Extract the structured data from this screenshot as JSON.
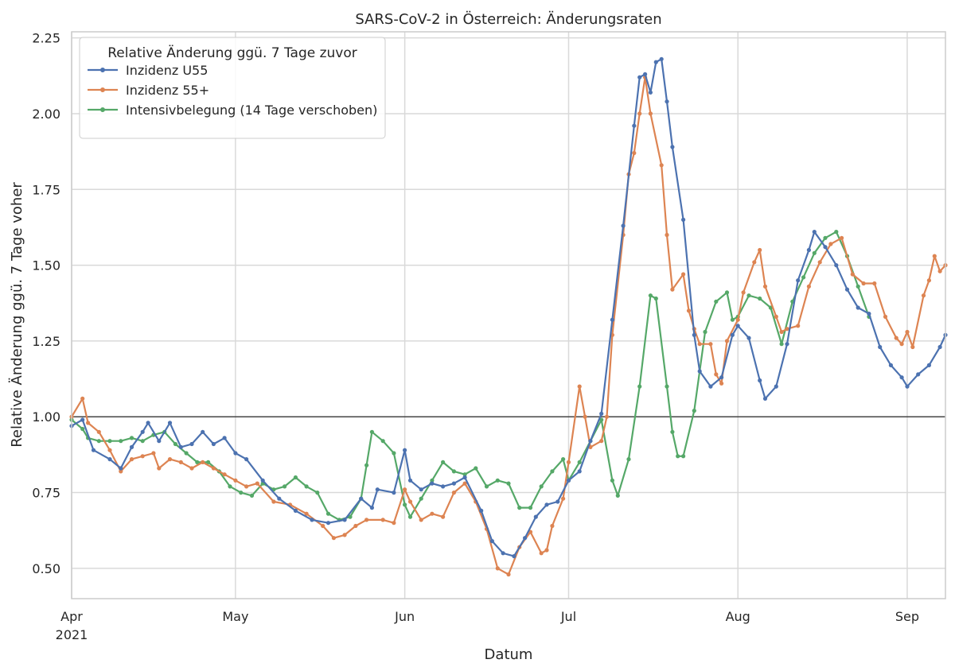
{
  "chart_data": {
    "type": "line",
    "title": "SARS-CoV-2 in Österreich: Änderungsraten",
    "xlabel": "Datum",
    "ylabel": "Relative Änderung ggü. 7 Tage voher",
    "xlim": [
      "2021-04-01",
      "2021-09-08"
    ],
    "ylim": [
      0.4,
      2.27
    ],
    "grid": true,
    "reference_line": 1.0,
    "x_ticks": [
      {
        "date": "2021-04-01",
        "label": "Apr",
        "sublabel": "2021"
      },
      {
        "date": "2021-05-01",
        "label": "May",
        "sublabel": ""
      },
      {
        "date": "2021-06-01",
        "label": "Jun",
        "sublabel": ""
      },
      {
        "date": "2021-07-01",
        "label": "Jul",
        "sublabel": ""
      },
      {
        "date": "2021-08-01",
        "label": "Aug",
        "sublabel": ""
      },
      {
        "date": "2021-09-01",
        "label": "Sep",
        "sublabel": ""
      }
    ],
    "y_ticks": [
      "0.50",
      "0.75",
      "1.00",
      "1.25",
      "1.50",
      "1.75",
      "2.00",
      "2.25"
    ],
    "legend": {
      "title": "Relative Änderung ggü. 7 Tage zuvor",
      "position": "upper-left"
    },
    "series": [
      {
        "name": "Inzidenz U55",
        "color": "#4c72b0",
        "points": [
          [
            "2021-04-01",
            0.97
          ],
          [
            "2021-04-03",
            0.99
          ],
          [
            "2021-04-05",
            0.89
          ],
          [
            "2021-04-08",
            0.86
          ],
          [
            "2021-04-10",
            0.83
          ],
          [
            "2021-04-12",
            0.9
          ],
          [
            "2021-04-14",
            0.95
          ],
          [
            "2021-04-15",
            0.98
          ],
          [
            "2021-04-17",
            0.92
          ],
          [
            "2021-04-19",
            0.98
          ],
          [
            "2021-04-21",
            0.9
          ],
          [
            "2021-04-23",
            0.91
          ],
          [
            "2021-04-25",
            0.95
          ],
          [
            "2021-04-27",
            0.91
          ],
          [
            "2021-04-29",
            0.93
          ],
          [
            "2021-05-01",
            0.88
          ],
          [
            "2021-05-03",
            0.86
          ],
          [
            "2021-05-06",
            0.79
          ],
          [
            "2021-05-09",
            0.73
          ],
          [
            "2021-05-12",
            0.69
          ],
          [
            "2021-05-15",
            0.66
          ],
          [
            "2021-05-18",
            0.65
          ],
          [
            "2021-05-21",
            0.66
          ],
          [
            "2021-05-24",
            0.73
          ],
          [
            "2021-05-26",
            0.7
          ],
          [
            "2021-05-27",
            0.76
          ],
          [
            "2021-05-30",
            0.75
          ],
          [
            "2021-06-01",
            0.89
          ],
          [
            "2021-06-02",
            0.79
          ],
          [
            "2021-06-04",
            0.76
          ],
          [
            "2021-06-06",
            0.78
          ],
          [
            "2021-06-08",
            0.77
          ],
          [
            "2021-06-10",
            0.78
          ],
          [
            "2021-06-12",
            0.8
          ],
          [
            "2021-06-15",
            0.69
          ],
          [
            "2021-06-17",
            0.59
          ],
          [
            "2021-06-19",
            0.55
          ],
          [
            "2021-06-21",
            0.54
          ],
          [
            "2021-06-23",
            0.6
          ],
          [
            "2021-06-25",
            0.67
          ],
          [
            "2021-06-27",
            0.71
          ],
          [
            "2021-06-29",
            0.72
          ],
          [
            "2021-07-01",
            0.79
          ],
          [
            "2021-07-03",
            0.82
          ],
          [
            "2021-07-05",
            0.92
          ],
          [
            "2021-07-07",
            1.01
          ],
          [
            "2021-07-09",
            1.32
          ],
          [
            "2021-07-11",
            1.63
          ],
          [
            "2021-07-13",
            1.96
          ],
          [
            "2021-07-14",
            2.12
          ],
          [
            "2021-07-15",
            2.13
          ],
          [
            "2021-07-16",
            2.07
          ],
          [
            "2021-07-17",
            2.17
          ],
          [
            "2021-07-18",
            2.18
          ],
          [
            "2021-07-19",
            2.04
          ],
          [
            "2021-07-20",
            1.89
          ],
          [
            "2021-07-22",
            1.65
          ],
          [
            "2021-07-24",
            1.27
          ],
          [
            "2021-07-25",
            1.15
          ],
          [
            "2021-07-27",
            1.1
          ],
          [
            "2021-07-29",
            1.13
          ],
          [
            "2021-07-31",
            1.27
          ],
          [
            "2021-08-01",
            1.3
          ],
          [
            "2021-08-03",
            1.26
          ],
          [
            "2021-08-05",
            1.12
          ],
          [
            "2021-08-06",
            1.06
          ],
          [
            "2021-08-08",
            1.1
          ],
          [
            "2021-08-10",
            1.24
          ],
          [
            "2021-08-12",
            1.45
          ],
          [
            "2021-08-14",
            1.55
          ],
          [
            "2021-08-15",
            1.61
          ],
          [
            "2021-08-17",
            1.56
          ],
          [
            "2021-08-19",
            1.5
          ],
          [
            "2021-08-21",
            1.42
          ],
          [
            "2021-08-23",
            1.36
          ],
          [
            "2021-08-25",
            1.34
          ],
          [
            "2021-08-27",
            1.23
          ],
          [
            "2021-08-29",
            1.17
          ],
          [
            "2021-08-31",
            1.13
          ],
          [
            "2021-09-01",
            1.1
          ],
          [
            "2021-09-03",
            1.14
          ],
          [
            "2021-09-05",
            1.17
          ],
          [
            "2021-09-07",
            1.23
          ],
          [
            "2021-09-08",
            1.27
          ]
        ]
      },
      {
        "name": "Inzidenz 55+",
        "color": "#dd8452",
        "points": [
          [
            "2021-04-01",
            1.0
          ],
          [
            "2021-04-03",
            1.06
          ],
          [
            "2021-04-04",
            0.98
          ],
          [
            "2021-04-06",
            0.95
          ],
          [
            "2021-04-08",
            0.89
          ],
          [
            "2021-04-10",
            0.82
          ],
          [
            "2021-04-12",
            0.86
          ],
          [
            "2021-04-14",
            0.87
          ],
          [
            "2021-04-16",
            0.88
          ],
          [
            "2021-04-17",
            0.83
          ],
          [
            "2021-04-19",
            0.86
          ],
          [
            "2021-04-21",
            0.85
          ],
          [
            "2021-04-23",
            0.83
          ],
          [
            "2021-04-25",
            0.85
          ],
          [
            "2021-04-27",
            0.83
          ],
          [
            "2021-04-29",
            0.81
          ],
          [
            "2021-05-01",
            0.79
          ],
          [
            "2021-05-03",
            0.77
          ],
          [
            "2021-05-05",
            0.78
          ],
          [
            "2021-05-08",
            0.72
          ],
          [
            "2021-05-11",
            0.71
          ],
          [
            "2021-05-14",
            0.68
          ],
          [
            "2021-05-17",
            0.64
          ],
          [
            "2021-05-19",
            0.6
          ],
          [
            "2021-05-21",
            0.61
          ],
          [
            "2021-05-23",
            0.64
          ],
          [
            "2021-05-25",
            0.66
          ],
          [
            "2021-05-28",
            0.66
          ],
          [
            "2021-05-30",
            0.65
          ],
          [
            "2021-06-01",
            0.76
          ],
          [
            "2021-06-02",
            0.72
          ],
          [
            "2021-06-04",
            0.66
          ],
          [
            "2021-06-06",
            0.68
          ],
          [
            "2021-06-08",
            0.67
          ],
          [
            "2021-06-10",
            0.75
          ],
          [
            "2021-06-12",
            0.78
          ],
          [
            "2021-06-14",
            0.72
          ],
          [
            "2021-06-16",
            0.63
          ],
          [
            "2021-06-18",
            0.5
          ],
          [
            "2021-06-20",
            0.48
          ],
          [
            "2021-06-22",
            0.57
          ],
          [
            "2021-06-24",
            0.62
          ],
          [
            "2021-06-26",
            0.55
          ],
          [
            "2021-06-27",
            0.56
          ],
          [
            "2021-06-28",
            0.64
          ],
          [
            "2021-06-30",
            0.73
          ],
          [
            "2021-07-01",
            0.85
          ],
          [
            "2021-07-03",
            1.1
          ],
          [
            "2021-07-04",
            1.0
          ],
          [
            "2021-07-05",
            0.9
          ],
          [
            "2021-07-07",
            0.92
          ],
          [
            "2021-07-08",
            1.0
          ],
          [
            "2021-07-09",
            1.27
          ],
          [
            "2021-07-11",
            1.6
          ],
          [
            "2021-07-12",
            1.8
          ],
          [
            "2021-07-13",
            1.87
          ],
          [
            "2021-07-14",
            2.0
          ],
          [
            "2021-07-15",
            2.12
          ],
          [
            "2021-07-16",
            2.0
          ],
          [
            "2021-07-18",
            1.83
          ],
          [
            "2021-07-19",
            1.6
          ],
          [
            "2021-07-20",
            1.42
          ],
          [
            "2021-07-22",
            1.47
          ],
          [
            "2021-07-23",
            1.35
          ],
          [
            "2021-07-24",
            1.29
          ],
          [
            "2021-07-25",
            1.24
          ],
          [
            "2021-07-27",
            1.24
          ],
          [
            "2021-07-28",
            1.14
          ],
          [
            "2021-07-29",
            1.11
          ],
          [
            "2021-07-30",
            1.25
          ],
          [
            "2021-08-01",
            1.32
          ],
          [
            "2021-08-02",
            1.41
          ],
          [
            "2021-08-04",
            1.51
          ],
          [
            "2021-08-05",
            1.55
          ],
          [
            "2021-08-06",
            1.43
          ],
          [
            "2021-08-08",
            1.33
          ],
          [
            "2021-08-09",
            1.28
          ],
          [
            "2021-08-10",
            1.29
          ],
          [
            "2021-08-12",
            1.3
          ],
          [
            "2021-08-14",
            1.43
          ],
          [
            "2021-08-16",
            1.51
          ],
          [
            "2021-08-18",
            1.57
          ],
          [
            "2021-08-20",
            1.59
          ],
          [
            "2021-08-22",
            1.47
          ],
          [
            "2021-08-24",
            1.44
          ],
          [
            "2021-08-26",
            1.44
          ],
          [
            "2021-08-28",
            1.33
          ],
          [
            "2021-08-30",
            1.26
          ],
          [
            "2021-08-31",
            1.24
          ],
          [
            "2021-09-01",
            1.28
          ],
          [
            "2021-09-02",
            1.23
          ],
          [
            "2021-09-04",
            1.4
          ],
          [
            "2021-09-05",
            1.45
          ],
          [
            "2021-09-06",
            1.53
          ],
          [
            "2021-09-07",
            1.48
          ],
          [
            "2021-09-08",
            1.5
          ]
        ]
      },
      {
        "name": "Intensivbelegung (14 Tage verschoben)",
        "color": "#55a868",
        "points": [
          [
            "2021-04-01",
            0.99
          ],
          [
            "2021-04-03",
            0.96
          ],
          [
            "2021-04-04",
            0.93
          ],
          [
            "2021-04-06",
            0.92
          ],
          [
            "2021-04-08",
            0.92
          ],
          [
            "2021-04-10",
            0.92
          ],
          [
            "2021-04-12",
            0.93
          ],
          [
            "2021-04-14",
            0.92
          ],
          [
            "2021-04-16",
            0.94
          ],
          [
            "2021-04-18",
            0.95
          ],
          [
            "2021-04-20",
            0.91
          ],
          [
            "2021-04-22",
            0.88
          ],
          [
            "2021-04-24",
            0.85
          ],
          [
            "2021-04-26",
            0.85
          ],
          [
            "2021-04-28",
            0.82
          ],
          [
            "2021-04-30",
            0.77
          ],
          [
            "2021-05-02",
            0.75
          ],
          [
            "2021-05-04",
            0.74
          ],
          [
            "2021-05-06",
            0.78
          ],
          [
            "2021-05-08",
            0.76
          ],
          [
            "2021-05-10",
            0.77
          ],
          [
            "2021-05-12",
            0.8
          ],
          [
            "2021-05-14",
            0.77
          ],
          [
            "2021-05-16",
            0.75
          ],
          [
            "2021-05-18",
            0.68
          ],
          [
            "2021-05-20",
            0.66
          ],
          [
            "2021-05-22",
            0.67
          ],
          [
            "2021-05-24",
            0.73
          ],
          [
            "2021-05-25",
            0.84
          ],
          [
            "2021-05-26",
            0.95
          ],
          [
            "2021-05-28",
            0.92
          ],
          [
            "2021-05-30",
            0.88
          ],
          [
            "2021-06-01",
            0.71
          ],
          [
            "2021-06-02",
            0.67
          ],
          [
            "2021-06-04",
            0.73
          ],
          [
            "2021-06-06",
            0.79
          ],
          [
            "2021-06-08",
            0.85
          ],
          [
            "2021-06-10",
            0.82
          ],
          [
            "2021-06-12",
            0.81
          ],
          [
            "2021-06-14",
            0.83
          ],
          [
            "2021-06-16",
            0.77
          ],
          [
            "2021-06-18",
            0.79
          ],
          [
            "2021-06-20",
            0.78
          ],
          [
            "2021-06-22",
            0.7
          ],
          [
            "2021-06-24",
            0.7
          ],
          [
            "2021-06-26",
            0.77
          ],
          [
            "2021-06-28",
            0.82
          ],
          [
            "2021-06-30",
            0.86
          ],
          [
            "2021-07-01",
            0.79
          ],
          [
            "2021-07-03",
            0.85
          ],
          [
            "2021-07-05",
            0.92
          ],
          [
            "2021-07-07",
            0.99
          ],
          [
            "2021-07-09",
            0.79
          ],
          [
            "2021-07-10",
            0.74
          ],
          [
            "2021-07-12",
            0.86
          ],
          [
            "2021-07-14",
            1.1
          ],
          [
            "2021-07-16",
            1.4
          ],
          [
            "2021-07-17",
            1.39
          ],
          [
            "2021-07-19",
            1.1
          ],
          [
            "2021-07-20",
            0.95
          ],
          [
            "2021-07-21",
            0.87
          ],
          [
            "2021-07-22",
            0.87
          ],
          [
            "2021-07-24",
            1.02
          ],
          [
            "2021-07-26",
            1.28
          ],
          [
            "2021-07-28",
            1.38
          ],
          [
            "2021-07-30",
            1.41
          ],
          [
            "2021-07-31",
            1.32
          ],
          [
            "2021-08-01",
            1.33
          ],
          [
            "2021-08-03",
            1.4
          ],
          [
            "2021-08-05",
            1.39
          ],
          [
            "2021-08-07",
            1.36
          ],
          [
            "2021-08-09",
            1.24
          ],
          [
            "2021-08-11",
            1.38
          ],
          [
            "2021-08-13",
            1.46
          ],
          [
            "2021-08-15",
            1.54
          ],
          [
            "2021-08-17",
            1.59
          ],
          [
            "2021-08-19",
            1.61
          ],
          [
            "2021-08-21",
            1.53
          ],
          [
            "2021-08-23",
            1.43
          ],
          [
            "2021-08-25",
            1.33
          ]
        ]
      }
    ]
  }
}
